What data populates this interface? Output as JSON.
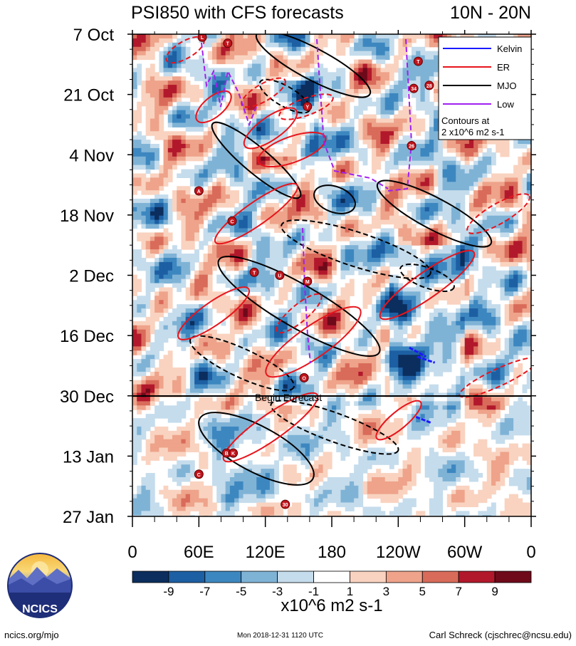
{
  "chart_data": {
    "type": "heatmap",
    "title": "PSI850 with CFS forecasts",
    "region": "10N - 20N",
    "y_axis": {
      "labels": [
        "7 Oct",
        "21 Oct",
        "4 Nov",
        "18 Nov",
        "2 Dec",
        "16 Dec",
        "30 Dec",
        "13 Jan",
        "27 Jan"
      ]
    },
    "x_axis": {
      "labels": [
        "0",
        "60E",
        "120E",
        "180",
        "120W",
        "60W",
        "0"
      ],
      "range_deg": [
        0,
        360
      ]
    },
    "forecast_label": "Begin Forecast",
    "legend": {
      "entries": [
        {
          "label": "Kelvin",
          "color": "#1a1aff",
          "dash": "solid"
        },
        {
          "label": "ER",
          "color": "#e8141c",
          "dash": "solid"
        },
        {
          "label": "MJO",
          "color": "#000000",
          "dash": "solid"
        },
        {
          "label": "Low",
          "color": "#a020f0",
          "dash": "solid"
        }
      ],
      "note_line1": "Contours at",
      "note_line2": "2 x10^6 m2 s-1"
    },
    "colorbar": {
      "colors": [
        "#0b2e5e",
        "#1d5fa3",
        "#3d87c0",
        "#7fb3d6",
        "#c5dcec",
        "#ffffff",
        "#f9d3c0",
        "#eea38a",
        "#d96b5a",
        "#b2182b",
        "#6e0a1a"
      ],
      "tick_labels": [
        "-9",
        "-7",
        "-5",
        "-3",
        "-1",
        "1",
        "3",
        "5",
        "7",
        "9"
      ],
      "units": "x10^6 m2 s-1"
    },
    "storm_markers": [
      {
        "label": "L",
        "lon": 63,
        "week": 0.05
      },
      {
        "label": "T",
        "lon": 86,
        "week": 0.15
      },
      {
        "label": "Y",
        "lon": 158,
        "week": 1.2
      },
      {
        "label": "A",
        "lon": 60,
        "week": 2.6
      },
      {
        "label": "C",
        "lon": 90,
        "week": 3.1
      },
      {
        "label": "T",
        "lon": 110,
        "week": 3.95
      },
      {
        "label": "U",
        "lon": 133,
        "week": 4.0
      },
      {
        "label": "M",
        "lon": 158,
        "week": 4.1
      },
      {
        "label": "O",
        "lon": 155,
        "week": 5.7
      },
      {
        "label": "B",
        "lon": 85,
        "week": 6.95
      },
      {
        "label": "K",
        "lon": 91,
        "week": 6.95
      },
      {
        "label": "C",
        "lon": 60,
        "week": 7.3
      },
      {
        "label": "30",
        "lon": 138,
        "week": 7.8
      },
      {
        "label": "T",
        "lon": 258,
        "week": 0.45
      },
      {
        "label": "34",
        "lon": 254,
        "week": 0.9
      },
      {
        "label": "28",
        "lon": 268,
        "week": 0.85
      },
      {
        "label": "26",
        "lon": 252,
        "week": 1.85
      }
    ],
    "kelvin_segments": [
      {
        "lon": [
          250,
          265
        ],
        "week": [
          5.2,
          5.35
        ]
      },
      {
        "lon": [
          257,
          273
        ],
        "week": [
          5.35,
          5.45
        ]
      },
      {
        "lon": [
          256,
          270
        ],
        "week": [
          6.35,
          6.45
        ]
      }
    ]
  },
  "footer": {
    "left": "ncics.org/mjo",
    "center": "Mon 2018-12-31 1120 UTC",
    "right": "Carl Schreck (cjschrec@ncsu.edu)"
  },
  "logo": {
    "text": "NCICS"
  }
}
